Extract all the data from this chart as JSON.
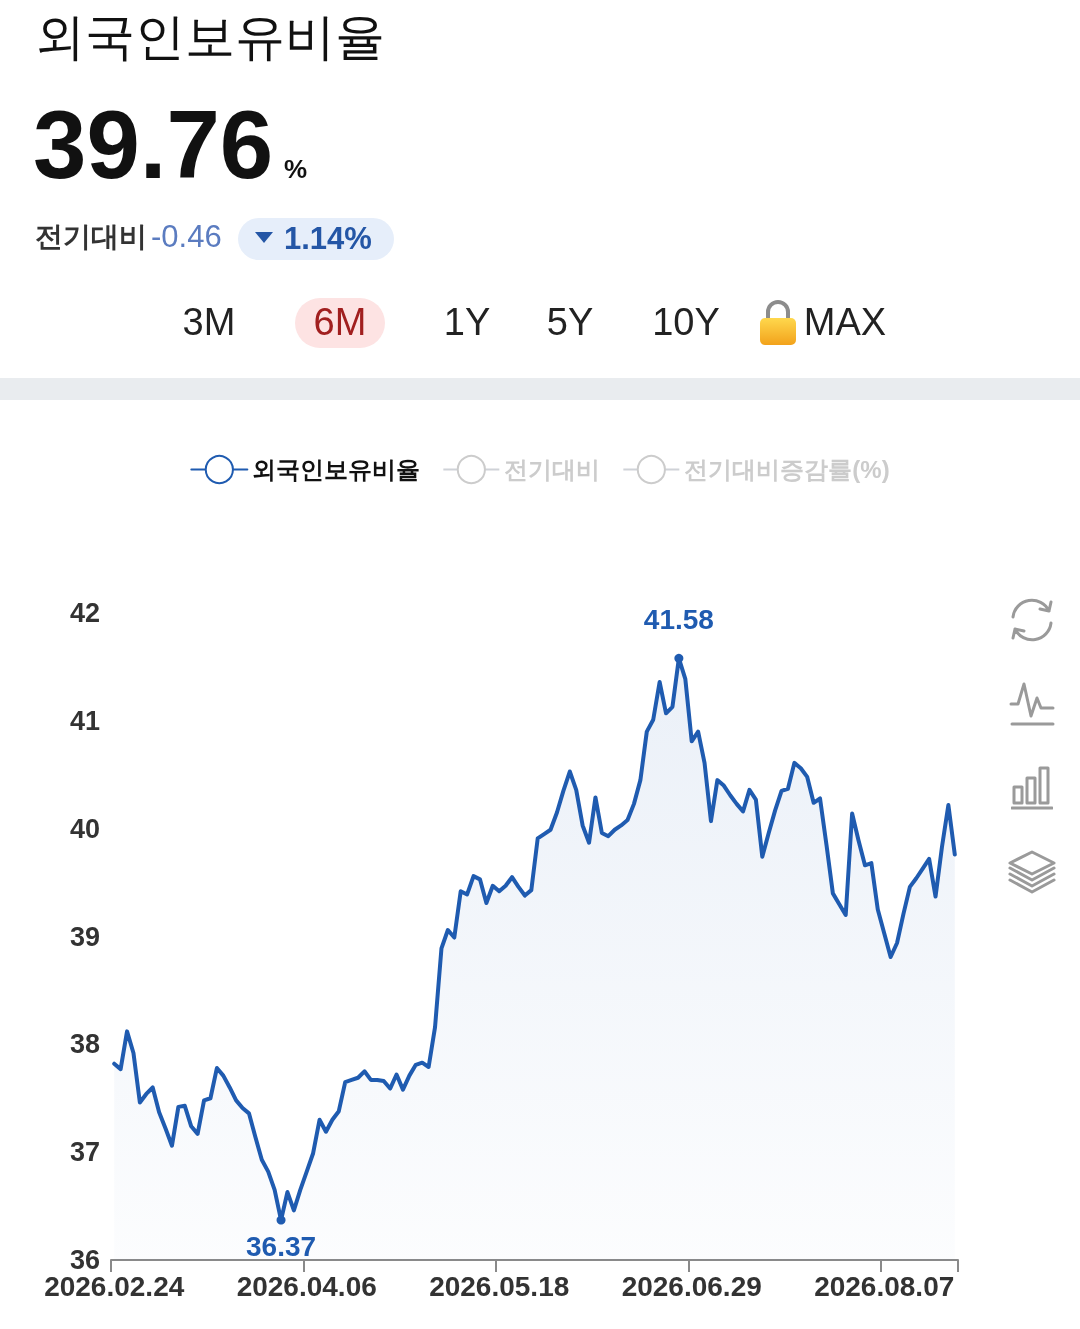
{
  "chart_data": {
    "type": "area",
    "title": "외국인보유비율",
    "annotations": [
      "39.76",
      "%",
      "전기대비",
      "-0.46",
      "1.14%",
      "3M",
      "6M",
      "1Y",
      "5Y",
      "10Y",
      "MAX"
    ],
    "categories": [
      "2026.02.24",
      null,
      null,
      null,
      null,
      null,
      null,
      null,
      null,
      null,
      null,
      null,
      null,
      null,
      null,
      null,
      null,
      null,
      null,
      null,
      null,
      null,
      null,
      null,
      null,
      null,
      null,
      null,
      null,
      null,
      "2026.04.06",
      null,
      null,
      null,
      null,
      null,
      null,
      null,
      null,
      null,
      null,
      null,
      null,
      null,
      null,
      null,
      null,
      null,
      null,
      null,
      null,
      null,
      null,
      null,
      null,
      null,
      null,
      null,
      null,
      null,
      "2026.05.18",
      null,
      null,
      null,
      null,
      null,
      null,
      null,
      null,
      null,
      null,
      null,
      null,
      null,
      null,
      null,
      null,
      null,
      null,
      null,
      null,
      null,
      null,
      null,
      null,
      null,
      null,
      null,
      null,
      null,
      "2026.06.29",
      null,
      null,
      null,
      null,
      null,
      null,
      null,
      null,
      null,
      null,
      null,
      null,
      null,
      null,
      null,
      null,
      null,
      null,
      null,
      null,
      null,
      null,
      null,
      null,
      null,
      null,
      null,
      null,
      null,
      "2026.08.07",
      null,
      null,
      null,
      null,
      null,
      null,
      null,
      null,
      null,
      null,
      null
    ],
    "series": [
      {
        "name": "외국인보유비율",
        "color": "#1f5bb0",
        "values": [
          37.82,
          37.77,
          38.12,
          37.92,
          37.46,
          37.54,
          37.6,
          37.37,
          37.22,
          37.06,
          37.42,
          37.43,
          37.24,
          37.17,
          37.48,
          37.5,
          37.78,
          37.71,
          37.6,
          37.48,
          37.41,
          37.36,
          37.14,
          36.93,
          36.82,
          36.65,
          36.37,
          36.63,
          36.46,
          36.65,
          36.82,
          36.99,
          37.3,
          37.19,
          37.3,
          37.38,
          37.65,
          37.67,
          37.69,
          37.75,
          37.67,
          37.67,
          37.66,
          37.59,
          37.72,
          37.58,
          37.71,
          37.81,
          37.83,
          37.79,
          38.16,
          38.89,
          39.06,
          38.99,
          39.42,
          39.39,
          39.56,
          39.53,
          39.31,
          39.47,
          39.42,
          39.47,
          39.55,
          39.46,
          39.38,
          39.43,
          39.91,
          39.95,
          39.99,
          40.15,
          40.35,
          40.53,
          40.36,
          40.03,
          39.87,
          40.29,
          39.96,
          39.93,
          39.99,
          40.03,
          40.08,
          40.23,
          40.45,
          40.9,
          41.01,
          41.36,
          41.07,
          41.13,
          41.58,
          41.39,
          40.81,
          40.9,
          40.61,
          40.07,
          40.45,
          40.4,
          40.31,
          40.23,
          40.16,
          40.36,
          40.27,
          39.74,
          39.96,
          40.17,
          40.35,
          40.37,
          40.61,
          40.56,
          40.48,
          40.24,
          40.28,
          39.85,
          39.4,
          39.3,
          39.2,
          40.14,
          39.89,
          39.66,
          39.68,
          39.25,
          39.03,
          38.81,
          38.94,
          39.21,
          39.46,
          39.54,
          39.63,
          39.72,
          39.37,
          39.83,
          40.22,
          39.76
        ],
        "value_labels": [
          null,
          null,
          null,
          null,
          null,
          null,
          null,
          null,
          null,
          null,
          null,
          null,
          null,
          null,
          null,
          null,
          null,
          null,
          null,
          null,
          null,
          null,
          null,
          null,
          null,
          null,
          "36.37",
          null,
          null,
          null,
          null,
          null,
          null,
          null,
          null,
          null,
          null,
          null,
          null,
          null,
          null,
          null,
          null,
          null,
          null,
          null,
          null,
          null,
          null,
          null,
          null,
          null,
          null,
          null,
          null,
          null,
          null,
          null,
          null,
          null,
          null,
          null,
          null,
          null,
          null,
          null,
          null,
          null,
          null,
          null,
          null,
          null,
          null,
          null,
          null,
          null,
          null,
          null,
          null,
          null,
          null,
          null,
          null,
          null,
          null,
          null,
          null,
          null,
          "41.58",
          null,
          null,
          null,
          null,
          null,
          null,
          null,
          null,
          null,
          null,
          null,
          null,
          null,
          null,
          null,
          null,
          null,
          null,
          null,
          null,
          null,
          null,
          null,
          null,
          null,
          null,
          null,
          null,
          null,
          null,
          null,
          null,
          null,
          null,
          null,
          null,
          null,
          null,
          null,
          null,
          null,
          null,
          null
        ]
      },
      {
        "name": "전기대비",
        "values": [
          null,
          null,
          null,
          null,
          null,
          null,
          null,
          null,
          null,
          null,
          null,
          null,
          null,
          null,
          null,
          null,
          null,
          null,
          null,
          null,
          null,
          null,
          null,
          null,
          null,
          null,
          null,
          null,
          null,
          null,
          null,
          null,
          null,
          null,
          null,
          null,
          null,
          null,
          null,
          null,
          null,
          null,
          null,
          null,
          null,
          null,
          null,
          null,
          null,
          null,
          null,
          null,
          null,
          null,
          null,
          null,
          null,
          null,
          null,
          null,
          null,
          null,
          null,
          null,
          null,
          null,
          null,
          null,
          null,
          null,
          null,
          null,
          null,
          null,
          null,
          null,
          null,
          null,
          null,
          null,
          null,
          null,
          null,
          null,
          null,
          null,
          null,
          null,
          null,
          null,
          null,
          null,
          null,
          null,
          null,
          null,
          null,
          null,
          null,
          null,
          null,
          null,
          null,
          null,
          null,
          null,
          null,
          null,
          null,
          null,
          null,
          null,
          null,
          null,
          null,
          null,
          null,
          null,
          null,
          null,
          null,
          null,
          null,
          null,
          null,
          null,
          null,
          null,
          null,
          null,
          null,
          null
        ]
      },
      {
        "name": "전기대비증감률(%)",
        "values": [
          null,
          null,
          null,
          null,
          null,
          null,
          null,
          null,
          null,
          null,
          null,
          null,
          null,
          null,
          null,
          null,
          null,
          null,
          null,
          null,
          null,
          null,
          null,
          null,
          null,
          null,
          null,
          null,
          null,
          null,
          null,
          null,
          null,
          null,
          null,
          null,
          null,
          null,
          null,
          null,
          null,
          null,
          null,
          null,
          null,
          null,
          null,
          null,
          null,
          null,
          null,
          null,
          null,
          null,
          null,
          null,
          null,
          null,
          null,
          null,
          null,
          null,
          null,
          null,
          null,
          null,
          null,
          null,
          null,
          null,
          null,
          null,
          null,
          null,
          null,
          null,
          null,
          null,
          null,
          null,
          null,
          null,
          null,
          null,
          null,
          null,
          null,
          null,
          null,
          null,
          null,
          null,
          null,
          null,
          null,
          null,
          null,
          null,
          null,
          null,
          null,
          null,
          null,
          null,
          null,
          null,
          null,
          null,
          null,
          null,
          null,
          null,
          null,
          null,
          null,
          null,
          null,
          null,
          null,
          null,
          null,
          null,
          null,
          null,
          null,
          null,
          null,
          null,
          null,
          null,
          null,
          null
        ]
      }
    ],
    "ylim": [
      36,
      42
    ],
    "yticks": [
      36,
      37,
      38,
      39,
      40,
      41,
      42
    ],
    "grid": false,
    "legend": "top"
  }
}
